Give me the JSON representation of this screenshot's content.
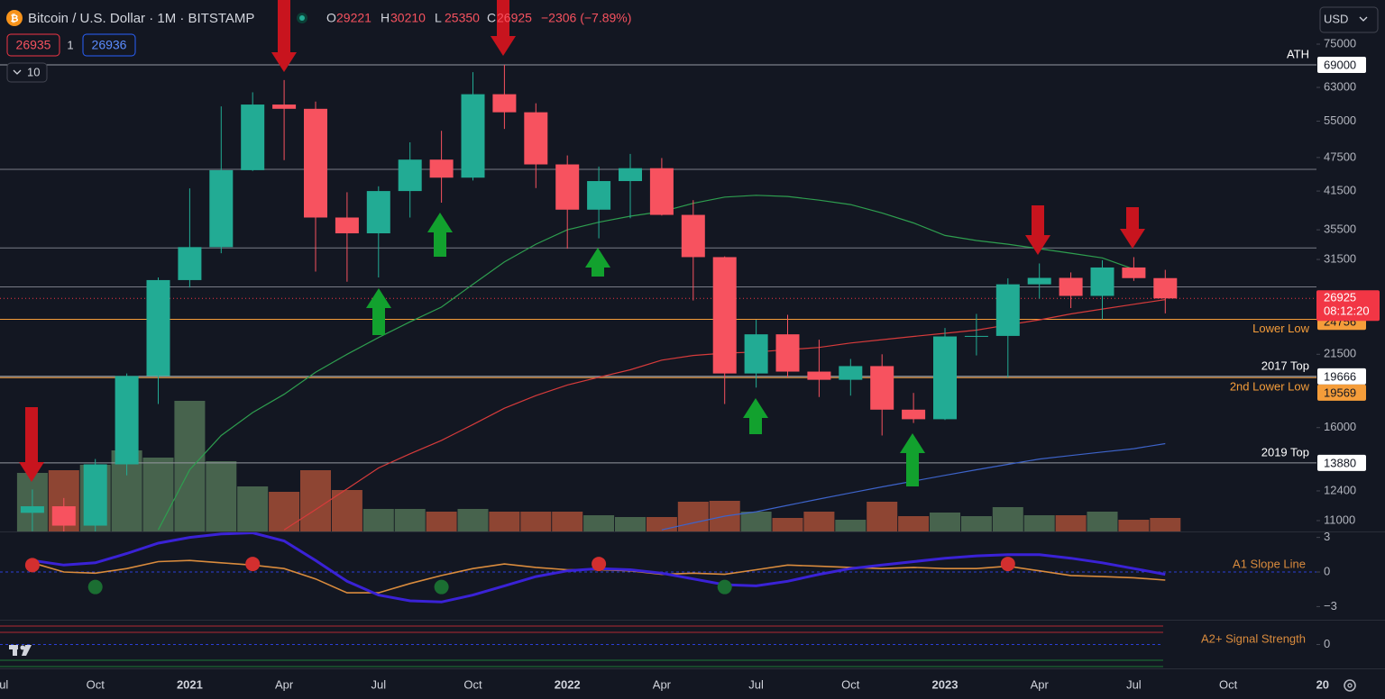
{
  "chart_data": [
    {
      "type": "candlestick",
      "title": "Bitcoin / U.S. Dollar · 1M · BITSTAMP",
      "legend_labels": [
        "O",
        "H",
        "L",
        "C"
      ],
      "change": "−2306 (−7.89%)",
      "sell": 26935,
      "spread": 1,
      "buy": 26936,
      "indicators": 10,
      "currency": "USD",
      "countdown": "08:12:20",
      "x": [
        "2020-08",
        "2020-09",
        "2020-10",
        "2020-11",
        "2020-12",
        "2021-01",
        "2021-02",
        "2021-03",
        "2021-04",
        "2021-05",
        "2021-06",
        "2021-07",
        "2021-08",
        "2021-09",
        "2021-10",
        "2021-11",
        "2021-12",
        "2022-01",
        "2022-02",
        "2022-03",
        "2022-04",
        "2022-05",
        "2022-06",
        "2022-07",
        "2022-08",
        "2022-09",
        "2022-10",
        "2022-11",
        "2022-12",
        "2023-01",
        "2023-02",
        "2023-03",
        "2023-04",
        "2023-05",
        "2023-06",
        "2023-07",
        "2023-08"
      ],
      "open": [
        11350,
        11655,
        10780,
        13800,
        19700,
        28990,
        33110,
        45140,
        58800,
        57800,
        37300,
        35000,
        41500,
        47100,
        43800,
        61300,
        57000,
        46200,
        38500,
        43200,
        45500,
        37700,
        31800,
        19900,
        23300,
        20050,
        19400,
        20500,
        17200,
        16550,
        23100,
        23150,
        28500,
        29250,
        27200,
        30500,
        29221
      ],
      "high": [
        12470,
        12050,
        14100,
        19900,
        29300,
        41950,
        58350,
        61780,
        64900,
        59500,
        41300,
        42300,
        50500,
        52900,
        67000,
        69000,
        59100,
        47900,
        45800,
        48200,
        47400,
        40000,
        31900,
        24700,
        25200,
        22800,
        21100,
        21500,
        18400,
        23900,
        25300,
        29200,
        31000,
        29900,
        31400,
        31800,
        30210
      ],
      "low": [
        10540,
        9900,
        10400,
        13200,
        17600,
        28130,
        32300,
        45000,
        47000,
        30000,
        28800,
        29300,
        37300,
        39600,
        43300,
        53300,
        42000,
        32900,
        34300,
        37200,
        37600,
        26700,
        17600,
        18800,
        19600,
        18100,
        18200,
        15500,
        16300,
        16500,
        21400,
        19569,
        26900,
        25900,
        24756,
        28900,
        25350
      ],
      "close": [
        11655,
        10780,
        13800,
        19700,
        28990,
        33110,
        45140,
        58800,
        57800,
        37300,
        35000,
        41500,
        47100,
        43800,
        61300,
        57000,
        46200,
        38500,
        43200,
        45500,
        37700,
        31800,
        19900,
        23300,
        20050,
        19400,
        20500,
        17200,
        16550,
        23100,
        23150,
        28500,
        29250,
        27200,
        30500,
        29221,
        26925
      ],
      "up_color": "#22ab94",
      "down_color": "#f7525f",
      "last_color": "#f23645",
      "log_scale": true,
      "ylim": [
        10530,
        89600
      ],
      "yticks": [
        11000,
        12400,
        16000,
        21500,
        31500,
        35500,
        41500,
        47500,
        55000,
        63000,
        75000
      ],
      "xticks": [
        {
          "value": "2020-07",
          "label": "Jul"
        },
        {
          "value": "2020-10",
          "label": "Oct"
        },
        {
          "value": "2021-01",
          "label": "2021"
        },
        {
          "value": "2021-04",
          "label": "Apr"
        },
        {
          "value": "2021-07",
          "label": "Jul"
        },
        {
          "value": "2021-10",
          "label": "Oct"
        },
        {
          "value": "2022-01",
          "label": "2022"
        },
        {
          "value": "2022-04",
          "label": "Apr"
        },
        {
          "value": "2022-07",
          "label": "Jul"
        },
        {
          "value": "2022-10",
          "label": "Oct"
        },
        {
          "value": "2023-01",
          "label": "2023"
        },
        {
          "value": "2023-04",
          "label": "Apr"
        },
        {
          "value": "2023-07",
          "label": "Jul"
        },
        {
          "value": "2023-10",
          "label": "Oct"
        },
        {
          "value": "2024-01",
          "label": "20"
        }
      ],
      "series": [
        {
          "color": "#2e9e4f",
          "values": [
            null,
            null,
            null,
            null,
            10600,
            13500,
            15500,
            17000,
            18300,
            20000,
            21500,
            23000,
            24500,
            26000,
            28500,
            31200,
            33500,
            35500,
            36600,
            37500,
            38200,
            39500,
            40500,
            40800,
            40600,
            40000,
            39300,
            38000,
            36500,
            34700,
            34000,
            33500,
            32900,
            32300,
            31700,
            30300,
            null
          ]
        },
        {
          "color": "#d63b3b",
          "values": [
            null,
            null,
            null,
            null,
            null,
            null,
            null,
            null,
            10600,
            11500,
            12500,
            13600,
            14400,
            15200,
            16200,
            17300,
            18200,
            19000,
            19600,
            20200,
            21000,
            21400,
            21600,
            21700,
            21900,
            22100,
            22500,
            22800,
            23100,
            23400,
            23700,
            24200,
            24700,
            25300,
            25800,
            26300,
            26800
          ]
        },
        {
          "color": "#3d63c9",
          "values": [
            null,
            null,
            null,
            null,
            null,
            null,
            null,
            null,
            null,
            null,
            null,
            null,
            null,
            null,
            null,
            null,
            null,
            null,
            null,
            null,
            10600,
            10900,
            11200,
            11400,
            11700,
            12000,
            12300,
            12600,
            12900,
            13200,
            13500,
            13800,
            14100,
            14300,
            14500,
            14700,
            15000
          ]
        }
      ],
      "volume": {
        "up_color": "#5a7d5c",
        "down_color": "#b8553a",
        "values": [
          65000,
          68000,
          74000,
          90000,
          82000,
          145000,
          78000,
          50000,
          44000,
          68000,
          46000,
          25000,
          25000,
          22000,
          25000,
          22000,
          22000,
          22000,
          18000,
          16000,
          16000,
          33000,
          34000,
          22000,
          15000,
          22000,
          13000,
          33000,
          17000,
          21000,
          17000,
          27000,
          18000,
          18000,
          22000,
          13000,
          15000
        ]
      },
      "levels": [
        {
          "label": "ATH",
          "value": 69000,
          "color": "#9598a1",
          "box_color": "#ffffff",
          "label_position": "above"
        },
        {
          "value": 45300,
          "color": "#787b86"
        },
        {
          "value": 33000,
          "color": "#787b86"
        },
        {
          "value": 28200,
          "color": "#787b86"
        },
        {
          "label": "Lower Low",
          "value": 24756,
          "color": "#f59d3a",
          "box_color": "#f59d3a",
          "label_position": "below"
        },
        {
          "label": "2017 Top",
          "value": 19666,
          "color": "#b2b5be",
          "box_color": "#ffffff",
          "label_position": "above"
        },
        {
          "label": "2nd Lower Low",
          "value": 19569,
          "color": "#f59d3a",
          "box_color": "#f59d3a",
          "label_position": "below"
        },
        {
          "label": "2019 Top",
          "value": 13880,
          "color": "#9598a1",
          "box_color": "#ffffff",
          "label_position": "above"
        }
      ]
    },
    {
      "type": "line",
      "title": "A1 Slope Line",
      "ylim": [
        -4.14,
        3.44
      ],
      "yticks": [
        3,
        0,
        {
          "value": -3,
          "label": "−3"
        }
      ],
      "series": [
        {
          "color": "#3a22d6",
          "values": [
            1.0,
            0.6,
            0.8,
            1.6,
            2.5,
            3.0,
            3.3,
            3.4,
            2.7,
            1.0,
            -0.8,
            -2.0,
            -2.5,
            -2.6,
            -2.0,
            -1.2,
            -0.4,
            0.1,
            0.3,
            0.2,
            -0.1,
            -0.6,
            -1.1,
            -1.2,
            -0.8,
            -0.2,
            0.3,
            0.6,
            0.9,
            1.2,
            1.4,
            1.5,
            1.5,
            1.2,
            0.8,
            0.3,
            -0.2
          ]
        },
        {
          "color": "#d98b3d",
          "values": [
            0.8,
            0.0,
            -0.1,
            0.3,
            0.9,
            1.0,
            0.8,
            0.6,
            0.3,
            -0.6,
            -1.8,
            -1.8,
            -1.0,
            -0.3,
            0.3,
            0.7,
            0.4,
            0.2,
            0.2,
            0.1,
            -0.2,
            -0.1,
            -0.2,
            0.2,
            0.6,
            0.5,
            0.4,
            0.3,
            0.4,
            0.3,
            0.3,
            0.5,
            0.1,
            -0.3,
            -0.4,
            -0.5,
            -0.7
          ]
        }
      ],
      "markers": [
        {
          "x": "2020-08",
          "value": 0.6,
          "color": "#d32f2f"
        },
        {
          "x": "2020-10",
          "value": -1.3,
          "color": "#1b6e32"
        },
        {
          "x": "2021-03",
          "value": 0.7,
          "color": "#d32f2f"
        },
        {
          "x": "2021-09",
          "value": -1.3,
          "color": "#1b6e32"
        },
        {
          "x": "2022-02",
          "value": 0.7,
          "color": "#d32f2f"
        },
        {
          "x": "2022-06",
          "value": -1.3,
          "color": "#1b6e32"
        },
        {
          "x": "2023-03",
          "value": 0.7,
          "color": "#d32f2f"
        }
      ]
    },
    {
      "type": "bar",
      "title": "A2+ Signal Strength",
      "ylim": [
        -1,
        1
      ],
      "yticks": [
        0
      ]
    }
  ]
}
